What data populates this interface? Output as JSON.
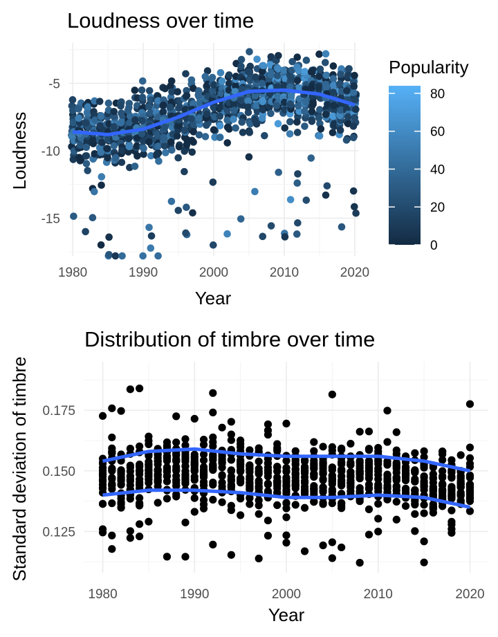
{
  "chart_data": [
    {
      "type": "scatter",
      "title": "Loudness over time",
      "xlabel": "Year",
      "ylabel": "Loudness",
      "xlim": [
        1979.5,
        2020.5
      ],
      "ylim": [
        -17.8,
        -2
      ],
      "x_ticks": [
        1980,
        1990,
        2000,
        2010,
        2020
      ],
      "y_ticks": [
        -15,
        -10,
        -5
      ],
      "grid": true,
      "color_by": "Popularity",
      "legend": {
        "title": "Popularity",
        "placement": "right",
        "range": [
          0,
          84
        ],
        "ticks": [
          0,
          20,
          40,
          60,
          80
        ],
        "low_color": "#132B43",
        "high_color": "#56B1F7"
      },
      "smooth": {
        "color": "#3366FF",
        "points": [
          [
            1980,
            -8.6
          ],
          [
            1985,
            -8.8
          ],
          [
            1990,
            -8.4
          ],
          [
            1995,
            -7.5
          ],
          [
            2000,
            -6.4
          ],
          [
            2005,
            -5.6
          ],
          [
            2010,
            -5.5
          ],
          [
            2015,
            -5.8
          ],
          [
            2020,
            -6.6
          ]
        ]
      }
    },
    {
      "type": "scatter",
      "title": "Distribution of timbre over time",
      "xlabel": "Year",
      "ylabel": "Standard deviation of timbre",
      "xlim": [
        1978,
        2022
      ],
      "ylim": [
        0.108,
        0.195
      ],
      "x_ticks": [
        1980,
        1990,
        2000,
        2010,
        2020
      ],
      "y_ticks": [
        0.125,
        0.15,
        0.175
      ],
      "grid": true,
      "point_color": "#000000",
      "smooth_upper": {
        "color": "#3366FF",
        "points": [
          [
            1980,
            0.154
          ],
          [
            1985,
            0.158
          ],
          [
            1990,
            0.159
          ],
          [
            1995,
            0.157
          ],
          [
            2000,
            0.156
          ],
          [
            2005,
            0.156
          ],
          [
            2010,
            0.156
          ],
          [
            2015,
            0.154
          ],
          [
            2020,
            0.15
          ]
        ]
      },
      "smooth_lower": {
        "color": "#3366FF",
        "points": [
          [
            1980,
            0.14
          ],
          [
            1985,
            0.142
          ],
          [
            1990,
            0.142
          ],
          [
            1995,
            0.141
          ],
          [
            2000,
            0.139
          ],
          [
            2005,
            0.139
          ],
          [
            2010,
            0.14
          ],
          [
            2015,
            0.139
          ],
          [
            2020,
            0.135
          ]
        ]
      }
    }
  ]
}
